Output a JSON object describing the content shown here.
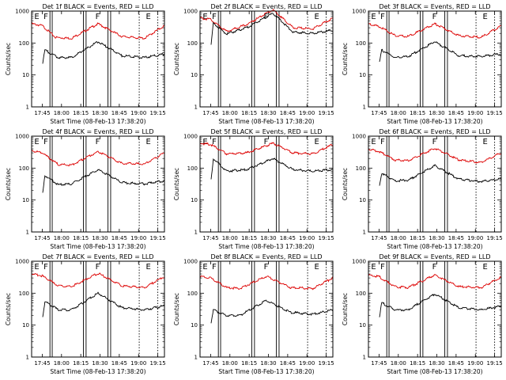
{
  "figure": {
    "tick_times": [
      "17:45",
      "18:00",
      "18:15",
      "18:30",
      "18:45",
      "19:00",
      "19:15"
    ],
    "y_ticks": [
      "1",
      "10",
      "100",
      "1000"
    ],
    "ylabel": "Counts/sec",
    "xlabel": "Start Time (08-Feb-13 17:38:20)"
  },
  "chart_data": [
    {
      "type": "line",
      "title": "Det 1f BLACK = Events, RED = LLD",
      "xlabel": "Start Time (08-Feb-13 17:38:20)",
      "ylabel": "Counts/sec",
      "yscale": "log",
      "ylim": [
        1,
        1000
      ],
      "x_ticks": [
        "17:45",
        "18:00",
        "18:15",
        "18:30",
        "18:45",
        "19:00",
        "19:15"
      ],
      "y_ticks": [
        "1",
        "10",
        "100",
        "1000"
      ],
      "markers": [
        "E",
        "F",
        "F",
        "E"
      ],
      "series": [
        {
          "name": "LLD",
          "color": "#dd0000",
          "x": [
            0,
            0.08,
            0.18,
            0.3,
            0.5,
            0.68,
            0.85,
            1
          ],
          "y": [
            400,
            350,
            150,
            140,
            400,
            160,
            140,
            350
          ]
        },
        {
          "name": "Events",
          "color": "#000000",
          "x": [
            0.08,
            0.1,
            0.2,
            0.3,
            0.5,
            0.68,
            0.85,
            1
          ],
          "y": [
            20,
            60,
            35,
            35,
            110,
            40,
            35,
            45
          ]
        }
      ]
    },
    {
      "type": "line",
      "title": "Det 2f BLACK = Events, RED = LLD",
      "xlabel": "Start Time (08-Feb-13 17:38:20)",
      "ylabel": "Counts/sec",
      "yscale": "log",
      "ylim": [
        1,
        1000
      ],
      "x_ticks": [
        "17:45",
        "18:00",
        "18:15",
        "18:30",
        "18:45",
        "19:00",
        "19:15"
      ],
      "y_ticks": [
        "1",
        "10",
        "100",
        "1000"
      ],
      "markers": [
        "E",
        "F",
        "F",
        "E"
      ],
      "series": [
        {
          "name": "LLD",
          "color": "#dd0000",
          "x": [
            0,
            0.08,
            0.2,
            0.35,
            0.55,
            0.7,
            0.85,
            1
          ],
          "y": [
            600,
            550,
            230,
            380,
            1100,
            300,
            280,
            600
          ]
        },
        {
          "name": "Events",
          "color": "#000000",
          "x": [
            0.08,
            0.1,
            0.2,
            0.35,
            0.55,
            0.7,
            0.85,
            1
          ],
          "y": [
            60,
            420,
            190,
            300,
            850,
            220,
            200,
            250
          ]
        }
      ]
    },
    {
      "type": "line",
      "title": "Det 3f BLACK = Events, RED = LLD",
      "xlabel": "Start Time (08-Feb-13 17:38:20)",
      "ylabel": "Counts/sec",
      "yscale": "log",
      "ylim": [
        1,
        1000
      ],
      "x_ticks": [
        "17:45",
        "18:00",
        "18:15",
        "18:30",
        "18:45",
        "19:00",
        "19:15"
      ],
      "y_ticks": [
        "1",
        "10",
        "100",
        "1000"
      ],
      "markers": [
        "E",
        "F",
        "F",
        "E"
      ],
      "series": [
        {
          "name": "LLD",
          "color": "#dd0000",
          "x": [
            0,
            0.08,
            0.2,
            0.3,
            0.5,
            0.68,
            0.85,
            1
          ],
          "y": [
            400,
            330,
            170,
            160,
            400,
            170,
            150,
            350
          ]
        },
        {
          "name": "Events",
          "color": "#000000",
          "x": [
            0.08,
            0.1,
            0.2,
            0.3,
            0.5,
            0.68,
            0.85,
            1
          ],
          "y": [
            20,
            60,
            35,
            38,
            110,
            40,
            38,
            45
          ]
        }
      ]
    },
    {
      "type": "line",
      "title": "Det 4f BLACK = Events, RED = LLD",
      "xlabel": "Start Time (08-Feb-13 17:38:20)",
      "ylabel": "Counts/sec",
      "yscale": "log",
      "ylim": [
        1,
        1000
      ],
      "x_ticks": [
        "17:45",
        "18:00",
        "18:15",
        "18:30",
        "18:45",
        "19:00",
        "19:15"
      ],
      "y_ticks": [
        "1",
        "10",
        "100",
        "1000"
      ],
      "markers": [
        "E",
        "F",
        "F",
        "E"
      ],
      "series": [
        {
          "name": "LLD",
          "color": "#dd0000",
          "x": [
            0,
            0.08,
            0.2,
            0.3,
            0.5,
            0.68,
            0.85,
            1
          ],
          "y": [
            350,
            300,
            130,
            125,
            330,
            140,
            135,
            300
          ]
        },
        {
          "name": "Events",
          "color": "#000000",
          "x": [
            0.08,
            0.1,
            0.2,
            0.3,
            0.5,
            0.68,
            0.85,
            1
          ],
          "y": [
            12,
            60,
            30,
            32,
            90,
            35,
            32,
            40
          ]
        }
      ]
    },
    {
      "type": "line",
      "title": "Det 5f BLACK = Events, RED = LLD",
      "xlabel": "Start Time (08-Feb-13 17:38:20)",
      "ylabel": "Counts/sec",
      "yscale": "log",
      "ylim": [
        1,
        1000
      ],
      "x_ticks": [
        "17:45",
        "18:00",
        "18:15",
        "18:30",
        "18:45",
        "19:00",
        "19:15"
      ],
      "y_ticks": [
        "1",
        "10",
        "100",
        "1000"
      ],
      "markers": [
        "E",
        "F",
        "F",
        "E"
      ],
      "series": [
        {
          "name": "LLD",
          "color": "#dd0000",
          "x": [
            0,
            0.08,
            0.2,
            0.35,
            0.55,
            0.7,
            0.85,
            1
          ],
          "y": [
            600,
            550,
            280,
            300,
            600,
            300,
            280,
            550
          ]
        },
        {
          "name": "Events",
          "color": "#000000",
          "x": [
            0.08,
            0.1,
            0.2,
            0.35,
            0.55,
            0.7,
            0.85,
            1
          ],
          "y": [
            30,
            200,
            80,
            90,
            200,
            90,
            80,
            90
          ]
        }
      ]
    },
    {
      "type": "line",
      "title": "Det 6f BLACK = Events, RED = LLD",
      "xlabel": "Start Time (08-Feb-13 17:38:20)",
      "ylabel": "Counts/sec",
      "yscale": "log",
      "ylim": [
        1,
        1000
      ],
      "x_ticks": [
        "17:45",
        "18:00",
        "18:15",
        "18:30",
        "18:45",
        "19:00",
        "19:15"
      ],
      "y_ticks": [
        "1",
        "10",
        "100",
        "1000"
      ],
      "markers": [
        "E",
        "F",
        "F",
        "E"
      ],
      "series": [
        {
          "name": "LLD",
          "color": "#dd0000",
          "x": [
            0,
            0.08,
            0.2,
            0.3,
            0.5,
            0.68,
            0.85,
            1
          ],
          "y": [
            400,
            330,
            180,
            170,
            420,
            180,
            150,
            300
          ]
        },
        {
          "name": "Events",
          "color": "#000000",
          "x": [
            0.08,
            0.1,
            0.2,
            0.3,
            0.5,
            0.68,
            0.85,
            1
          ],
          "y": [
            25,
            70,
            40,
            42,
            120,
            45,
            38,
            45
          ]
        }
      ]
    },
    {
      "type": "line",
      "title": "Det 7f BLACK = Events, RED = LLD",
      "xlabel": "Start Time (08-Feb-13 17:38:20)",
      "ylabel": "Counts/sec",
      "yscale": "log",
      "ylim": [
        1,
        1000
      ],
      "x_ticks": [
        "17:45",
        "18:00",
        "18:15",
        "18:30",
        "18:45",
        "19:00",
        "19:15"
      ],
      "y_ticks": [
        "1",
        "10",
        "100",
        "1000"
      ],
      "markers": [
        "E",
        "F",
        "F",
        "E"
      ],
      "series": [
        {
          "name": "LLD",
          "color": "#dd0000",
          "x": [
            0,
            0.08,
            0.2,
            0.3,
            0.5,
            0.68,
            0.85,
            1
          ],
          "y": [
            400,
            350,
            170,
            160,
            420,
            170,
            150,
            330
          ]
        },
        {
          "name": "Events",
          "color": "#000000",
          "x": [
            0.08,
            0.1,
            0.2,
            0.3,
            0.5,
            0.68,
            0.85,
            1
          ],
          "y": [
            15,
            55,
            30,
            30,
            100,
            35,
            30,
            40
          ]
        }
      ]
    },
    {
      "type": "line",
      "title": "Det 8f BLACK = Events, RED = LLD",
      "xlabel": "Start Time (08-Feb-13 17:38:20)",
      "ylabel": "Counts/sec",
      "yscale": "log",
      "ylim": [
        1,
        1000
      ],
      "x_ticks": [
        "17:45",
        "18:00",
        "18:15",
        "18:30",
        "18:45",
        "19:00",
        "19:15"
      ],
      "y_ticks": [
        "1",
        "10",
        "100",
        "1000"
      ],
      "markers": [
        "E",
        "F",
        "F",
        "E"
      ],
      "series": [
        {
          "name": "LLD",
          "color": "#dd0000",
          "x": [
            0,
            0.08,
            0.2,
            0.3,
            0.5,
            0.68,
            0.85,
            1
          ],
          "y": [
            330,
            300,
            150,
            140,
            340,
            150,
            140,
            300
          ]
        },
        {
          "name": "Events",
          "color": "#000000",
          "x": [
            0.08,
            0.1,
            0.2,
            0.3,
            0.5,
            0.68,
            0.85,
            1
          ],
          "y": [
            10,
            30,
            20,
            20,
            60,
            25,
            22,
            30
          ]
        }
      ]
    },
    {
      "type": "line",
      "title": "Det 9f BLACK = Events, RED = LLD",
      "xlabel": "Start Time (08-Feb-13 17:38:20)",
      "ylabel": "Counts/sec",
      "yscale": "log",
      "ylim": [
        1,
        1000
      ],
      "x_ticks": [
        "17:45",
        "18:00",
        "18:15",
        "18:30",
        "18:45",
        "19:00",
        "19:15"
      ],
      "y_ticks": [
        "1",
        "10",
        "100",
        "1000"
      ],
      "markers": [
        "E",
        "F",
        "F",
        "E"
      ],
      "series": [
        {
          "name": "LLD",
          "color": "#dd0000",
          "x": [
            0,
            0.08,
            0.2,
            0.3,
            0.5,
            0.68,
            0.85,
            1
          ],
          "y": [
            360,
            330,
            160,
            150,
            370,
            160,
            150,
            320
          ]
        },
        {
          "name": "Events",
          "color": "#000000",
          "x": [
            0.08,
            0.1,
            0.2,
            0.3,
            0.5,
            0.68,
            0.85,
            1
          ],
          "y": [
            15,
            50,
            30,
            30,
            95,
            35,
            30,
            40
          ]
        }
      ]
    }
  ]
}
